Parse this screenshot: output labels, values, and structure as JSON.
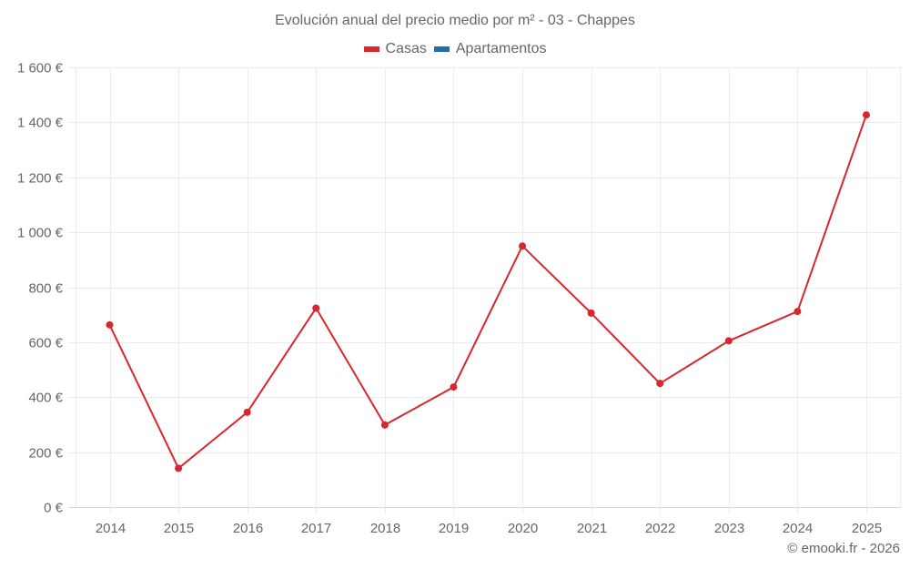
{
  "chart_data": {
    "type": "line",
    "title": "Evolución anual del precio medio por m² - 03 - Chappes",
    "xlabel": "",
    "ylabel": "",
    "categories": [
      "2014",
      "2015",
      "2016",
      "2017",
      "2018",
      "2019",
      "2020",
      "2021",
      "2022",
      "2023",
      "2024",
      "2025"
    ],
    "series": [
      {
        "name": "Casas",
        "color": "#d9262c",
        "values": [
          663,
          141,
          345,
          724,
          299,
          437,
          950,
          706,
          450,
          605,
          712,
          1427
        ]
      },
      {
        "name": "Apartamentos",
        "color": "#1f6fae",
        "values": []
      }
    ],
    "ylim": [
      0,
      1600
    ],
    "yticks": [
      0,
      200,
      400,
      600,
      800,
      1000,
      1200,
      1400,
      1600
    ],
    "ytick_labels": [
      "0 €",
      "200 €",
      "400 €",
      "600 €",
      "800 €",
      "1 000 €",
      "1 200 €",
      "1 400 €",
      "1 600 €"
    ],
    "grid": true,
    "legend_position": "top"
  },
  "title": "Evolución anual del precio medio por m² - 03 - Chappes",
  "legend": [
    {
      "label": "Casas",
      "color": "#d9262c"
    },
    {
      "label": "Apartamentos",
      "color": "#1f6fae"
    }
  ],
  "credit": "© emooki.fr - 2026"
}
